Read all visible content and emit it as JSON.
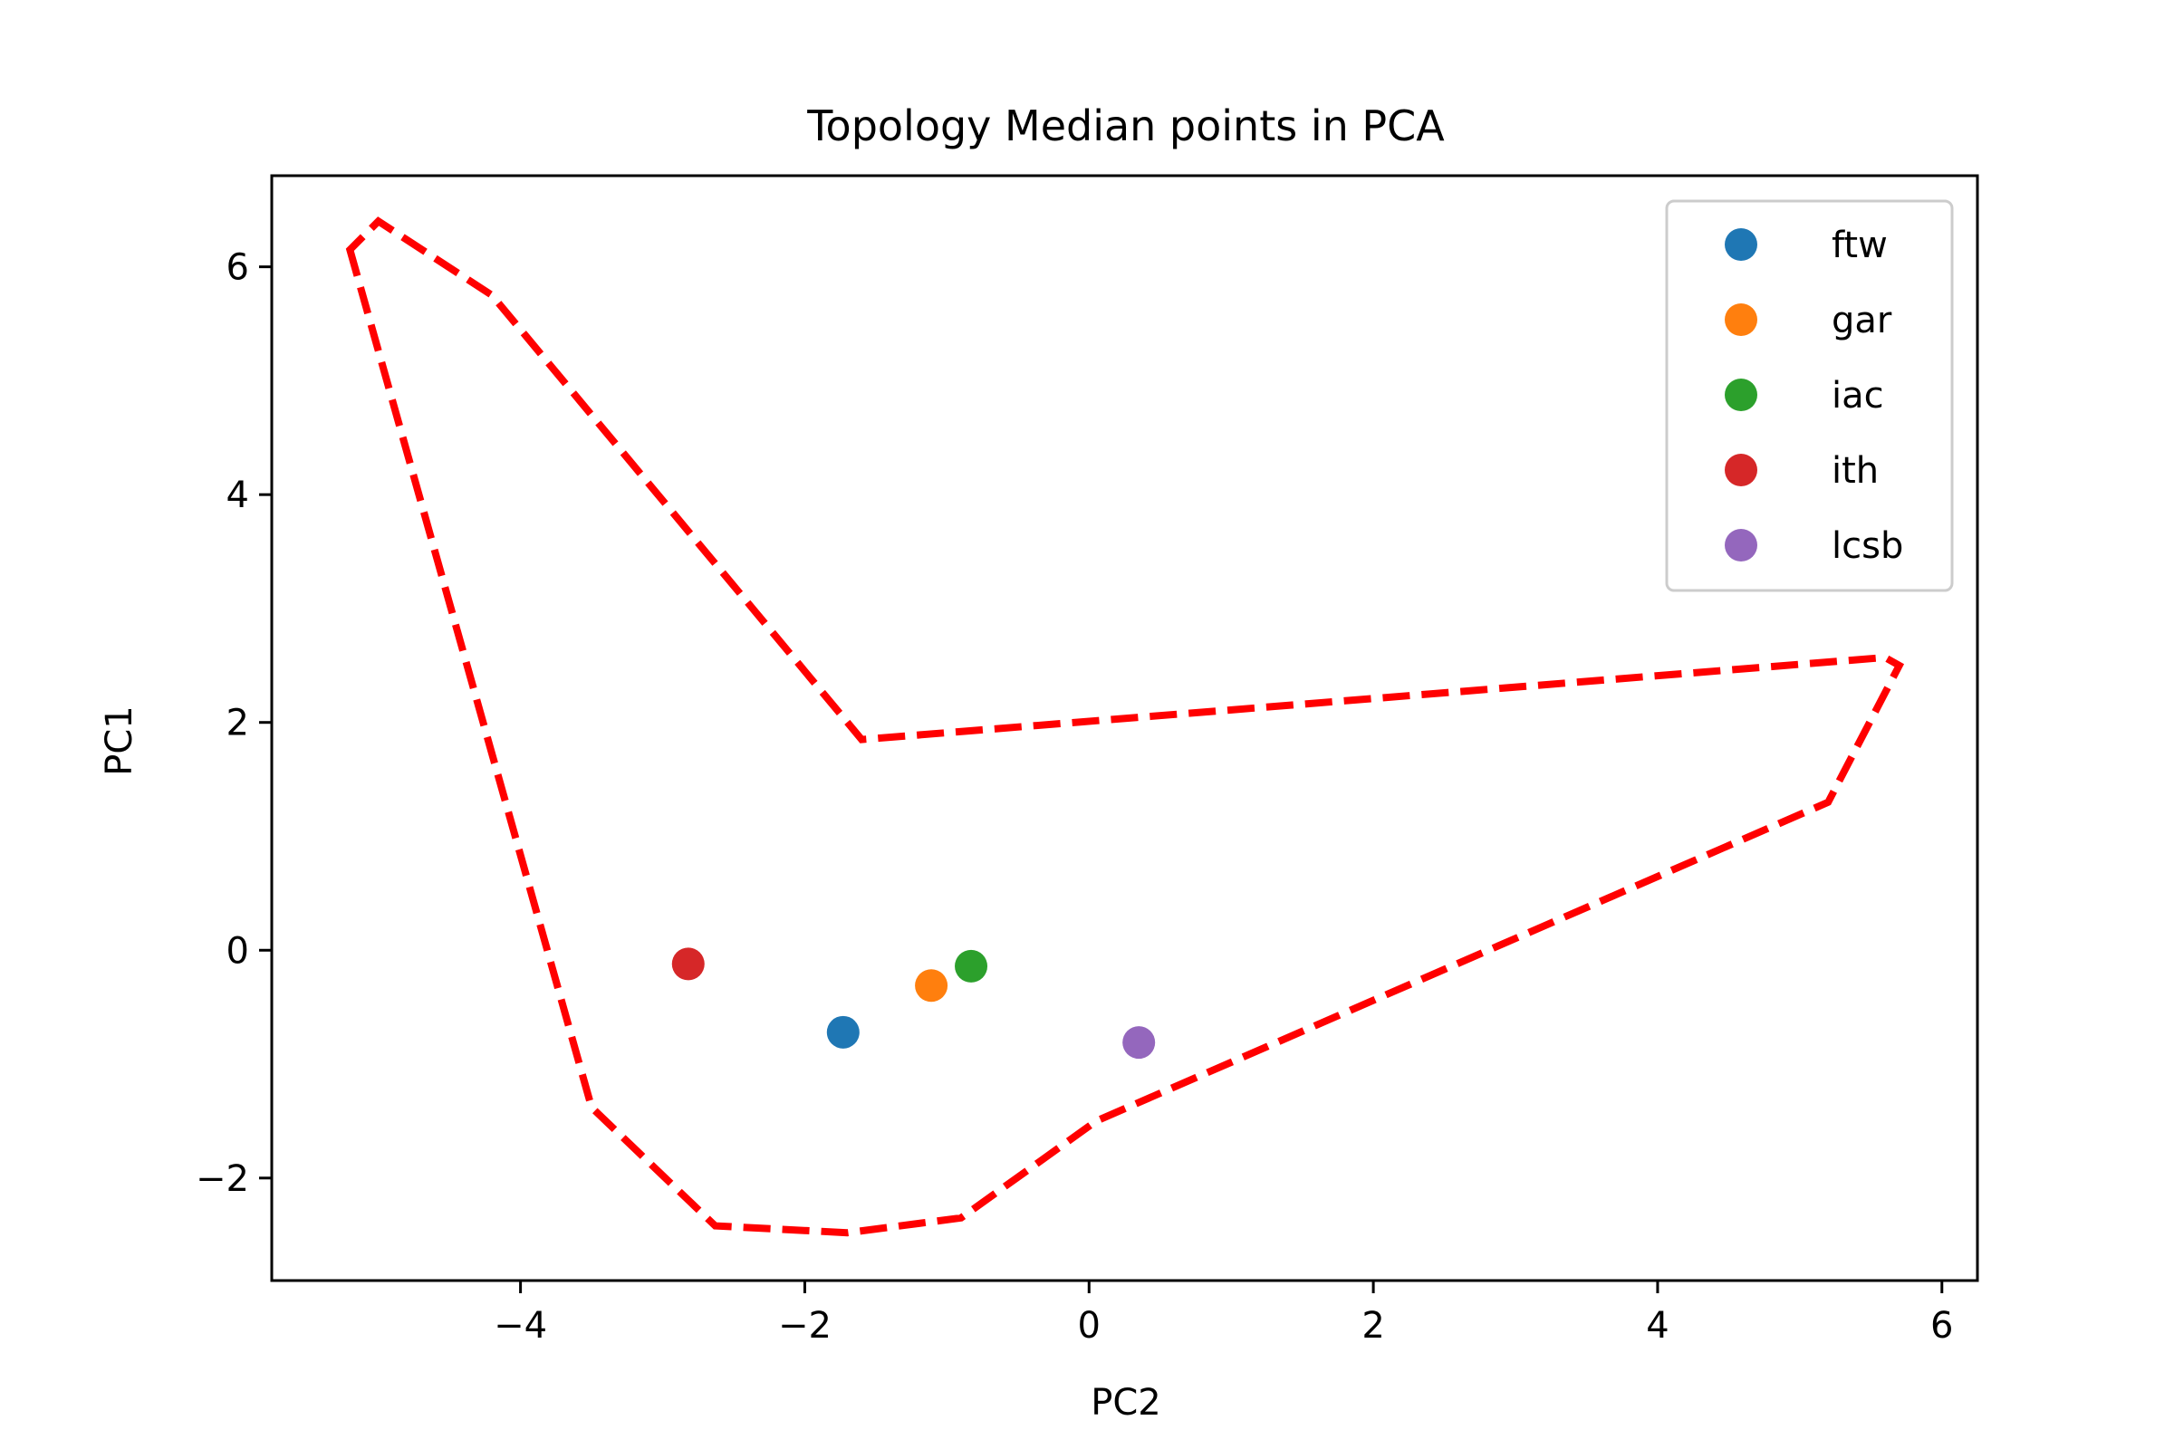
{
  "chart_data": {
    "type": "scatter",
    "title": "Topology Median points in PCA",
    "xlabel": "PC2",
    "ylabel": "PC1",
    "xlim": [
      -5.75,
      6.25
    ],
    "ylim": [
      -2.9,
      6.8
    ],
    "xticks": [
      -4,
      -2,
      0,
      2,
      4,
      6
    ],
    "yticks": [
      -2,
      0,
      2,
      4,
      6
    ],
    "grid": false,
    "legend_position": "top-right",
    "series": [
      {
        "name": "ftw",
        "color": "#1f77b4",
        "x": -1.73,
        "y": -0.72
      },
      {
        "name": "gar",
        "color": "#ff7f0e",
        "x": -1.11,
        "y": -0.31
      },
      {
        "name": "iac",
        "color": "#2ca02c",
        "x": -0.83,
        "y": -0.14
      },
      {
        "name": "ith",
        "color": "#d62728",
        "x": -2.82,
        "y": -0.12
      },
      {
        "name": "lcsb",
        "color": "#9467bd",
        "x": 0.35,
        "y": -0.81
      }
    ],
    "hull": {
      "color": "#ff0000",
      "style": "dashed",
      "points": [
        [
          -5.2,
          6.15
        ],
        [
          -3.5,
          -1.38
        ],
        [
          -2.63,
          -2.42
        ],
        [
          -1.7,
          -2.48
        ],
        [
          -0.9,
          -2.35
        ],
        [
          0.05,
          -1.5
        ],
        [
          5.2,
          1.3
        ],
        [
          5.7,
          2.5
        ],
        [
          5.6,
          2.57
        ],
        [
          -1.6,
          1.85
        ],
        [
          -4.2,
          5.75
        ],
        [
          -5.0,
          6.4
        ]
      ]
    }
  }
}
